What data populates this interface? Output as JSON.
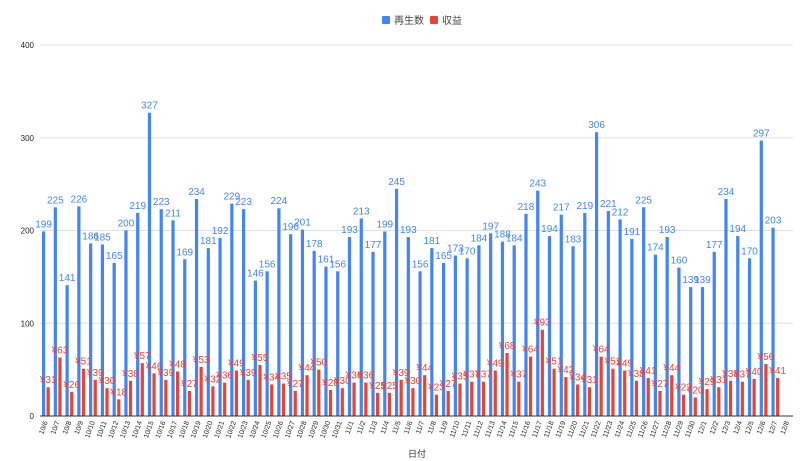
{
  "chart_data": {
    "type": "bar",
    "title": "",
    "xlabel": "日付",
    "ylabel": "",
    "ylim": [
      0,
      400
    ],
    "yticks": [
      0,
      100,
      200,
      300,
      400
    ],
    "legend_position": "top-center",
    "grid": true,
    "categories": [
      "10/6",
      "10/7",
      "10/8",
      "10/9",
      "10/10",
      "10/11",
      "10/12",
      "10/13",
      "10/14",
      "10/15",
      "10/16",
      "10/17",
      "10/18",
      "10/19",
      "10/20",
      "10/21",
      "10/22",
      "10/23",
      "10/24",
      "10/25",
      "10/26",
      "10/27",
      "10/28",
      "10/29",
      "10/30",
      "10/31",
      "11/1",
      "11/2",
      "11/3",
      "11/4",
      "11/5",
      "11/6",
      "11/7",
      "11/8",
      "11/9",
      "11/10",
      "11/11",
      "11/12",
      "11/13",
      "11/14",
      "11/15",
      "11/16",
      "11/17",
      "11/18",
      "11/19",
      "11/20",
      "11/21",
      "11/22",
      "11/23",
      "11/24",
      "11/25",
      "11/26",
      "11/27",
      "11/28",
      "11/29",
      "11/30",
      "12/1",
      "12/2",
      "12/3",
      "12/4",
      "12/5",
      "12/6",
      "12/7",
      "12/8"
    ],
    "series": [
      {
        "name": "再生数",
        "color": "#4285f4",
        "label_prefix": "",
        "values": [
          199,
          225,
          141,
          226,
          186,
          185,
          165,
          200,
          219,
          327,
          223,
          211,
          169,
          234,
          181,
          192,
          229,
          223,
          146,
          156,
          224,
          196,
          201,
          178,
          161,
          156,
          193,
          213,
          177,
          199,
          245,
          193,
          156,
          181,
          165,
          173,
          170,
          184,
          197,
          188,
          184,
          218,
          243,
          194,
          217,
          183,
          219,
          306,
          221,
          212,
          191,
          225,
          174,
          193,
          160,
          139,
          139,
          177,
          234,
          194,
          170,
          297,
          203,
          null
        ]
      },
      {
        "name": "収益",
        "color": "#ea4335",
        "label_prefix": "¥",
        "values": [
          31,
          63,
          26,
          51,
          39,
          30,
          18,
          38,
          57,
          46,
          39,
          48,
          27,
          53,
          32,
          36,
          49,
          39,
          55,
          34,
          35,
          27,
          44,
          50,
          28,
          30,
          36,
          36,
          25,
          25,
          39,
          30,
          44,
          23,
          27,
          35,
          37,
          37,
          49,
          68,
          37,
          64,
          93,
          51,
          42,
          34,
          31,
          64,
          51,
          49,
          38,
          41,
          27,
          44,
          23,
          20,
          29,
          31,
          38,
          37,
          40,
          56,
          41,
          null
        ]
      }
    ]
  }
}
